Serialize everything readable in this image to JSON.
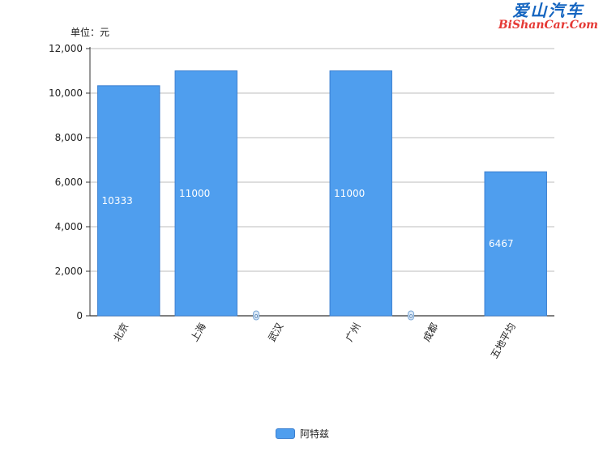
{
  "chart_data": {
    "type": "bar",
    "unit_label": "单位：元",
    "categories": [
      "北京",
      "上海",
      "武汉",
      "广州",
      "成都",
      "五地平均"
    ],
    "series": [
      {
        "name": "阿特兹",
        "values": [
          10333,
          11000,
          0,
          11000,
          0,
          6467
        ]
      }
    ],
    "data_labels": [
      "10333",
      "11000",
      "0",
      "11000",
      "0",
      "6467"
    ],
    "yticks": [
      "0",
      "2,000",
      "4,000",
      "6,000",
      "8,000",
      "10,000",
      "12,000"
    ],
    "ylim": [
      0,
      12000
    ],
    "grid": true,
    "legend_position": "bottom-center",
    "colors": {
      "bar": "#4f9eee",
      "bar_border": "#3a7fd0",
      "grid": "#bdbdbd",
      "axis": "#333333"
    }
  },
  "watermark": {
    "line1": "爱山汽车",
    "line2": "BiShanCar.Com"
  }
}
